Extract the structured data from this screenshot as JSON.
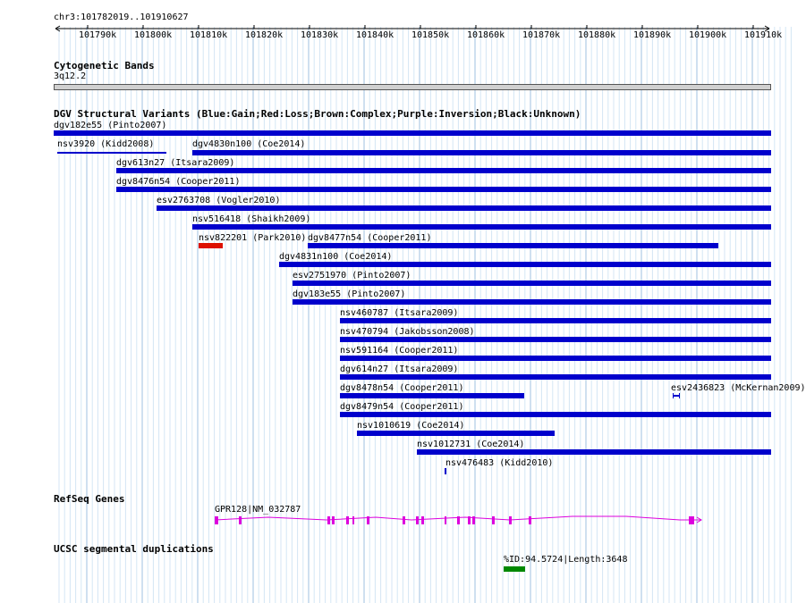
{
  "browser": {
    "position": "chr3:101782019..101910627",
    "ruler_ticks": [
      "101790k",
      "101800k",
      "101810k",
      "101820k",
      "101830k",
      "101840k",
      "101850k",
      "101860k",
      "101870k",
      "101880k",
      "101890k",
      "101900k",
      "101910k"
    ]
  },
  "cytobands": {
    "title": "Cytogenetic Bands",
    "band": "3q12.2"
  },
  "dgv": {
    "title": "DGV Structural Variants (Blue:Gain;Red:Loss;Brown:Complex;Purple:Inversion;Black:Unknown)",
    "colors": {
      "gain": "#0000cc",
      "loss": "#dd1100"
    },
    "variants": [
      {
        "label": "dgv182e55 (Pinto2007)",
        "type": "gain"
      },
      {
        "label": "nsv3920 (Kidd2008)",
        "type": "gain"
      },
      {
        "label": "dgv4830n100 (Coe2014)",
        "type": "gain"
      },
      {
        "label": "dgv613n27 (Itsara2009)",
        "type": "gain"
      },
      {
        "label": "dgv8476n54 (Cooper2011)",
        "type": "gain"
      },
      {
        "label": "esv2763708 (Vogler2010)",
        "type": "gain"
      },
      {
        "label": "nsv516418 (Shaikh2009)",
        "type": "gain"
      },
      {
        "label": "nsv822201 (Park2010)",
        "type": "loss"
      },
      {
        "label": "dgv8477n54 (Cooper2011)",
        "type": "gain"
      },
      {
        "label": "dgv4831n100 (Coe2014)",
        "type": "gain"
      },
      {
        "label": "esv2751970 (Pinto2007)",
        "type": "gain"
      },
      {
        "label": "dgv183e55 (Pinto2007)",
        "type": "gain"
      },
      {
        "label": "nsv460787 (Itsara2009)",
        "type": "gain"
      },
      {
        "label": "nsv470794 (Jakobsson2008)",
        "type": "gain"
      },
      {
        "label": "nsv591164 (Cooper2011)",
        "type": "gain"
      },
      {
        "label": "dgv614n27 (Itsara2009)",
        "type": "gain"
      },
      {
        "label": "dgv8478n54 (Cooper2011)",
        "type": "gain"
      },
      {
        "label": "esv2436823 (McKernan2009)",
        "type": "gain"
      },
      {
        "label": "dgv8479n54 (Cooper2011)",
        "type": "gain"
      },
      {
        "label": "nsv1010619 (Coe2014)",
        "type": "gain"
      },
      {
        "label": "nsv1012731 (Coe2014)",
        "type": "gain"
      },
      {
        "label": "nsv476483 (Kidd2010)",
        "type": "gain"
      }
    ]
  },
  "refseq": {
    "title": "RefSeq Genes",
    "gene": "GPR128|NM_032787",
    "color": "#dd00dd"
  },
  "segdups": {
    "title": "UCSC segmental duplications",
    "item": "%ID:94.5724|Length:3648",
    "color": "#008800"
  }
}
